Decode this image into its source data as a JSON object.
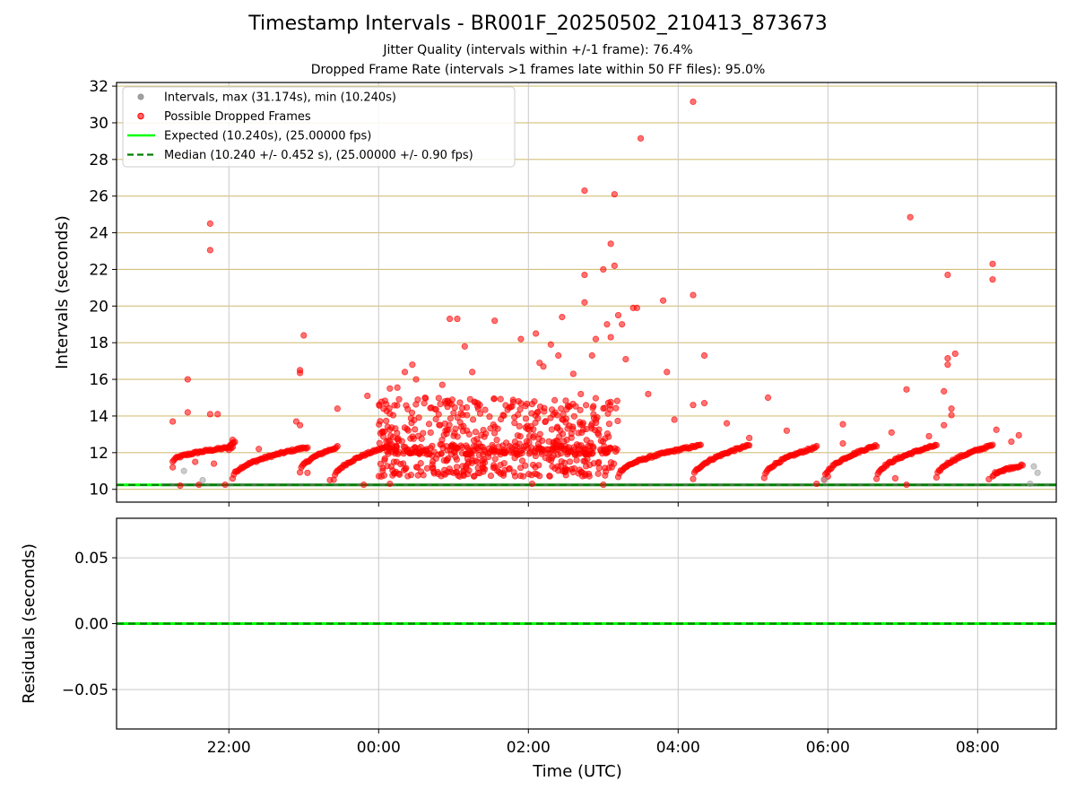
{
  "title": "Timestamp Intervals - BR001F_20250502_210413_873673",
  "subtitle1": "Jitter Quality (intervals within +/-1 frame): 76.4%",
  "subtitle2": "Dropped Frame Rate (intervals >1 frames late within 50 FF files): 95.0%",
  "colors": {
    "intervals": "#a0a0a0",
    "dropped": "#ff0000",
    "expected": "#00ff00",
    "median": "#008000",
    "hgrid": "#d4c07a",
    "vgrid": "#c8c8c8"
  },
  "chart_data": [
    {
      "type": "scatter",
      "xlabel": "",
      "ylabel": "Intervals (seconds)",
      "x_unit": "hours since 00:00 UTC (negative = previous day)",
      "xlim": [
        -3.5,
        9.05
      ],
      "ylim": [
        9.3,
        32.2
      ],
      "yticks": [
        "10",
        "12",
        "14",
        "16",
        "18",
        "20",
        "22",
        "24",
        "26",
        "28",
        "30",
        "32"
      ],
      "ytick_values": [
        10,
        12,
        14,
        16,
        18,
        20,
        22,
        24,
        26,
        28,
        30,
        32
      ],
      "grid": "horizontal",
      "legend_placement": "top-left",
      "legend": [
        {
          "label": "Intervals, max (31.174s), min (10.240s)",
          "kind": "dot-gray"
        },
        {
          "label": "Possible Dropped Frames",
          "kind": "dot-red"
        },
        {
          "label": "Expected (10.240s), (25.00000 fps)",
          "kind": "line-green"
        },
        {
          "label": "Median (10.240 +/- 0.452 s), (25.00000 +/- 0.90 fps)",
          "kind": "dash-darkgreen"
        }
      ],
      "expected_value": 10.24,
      "median_value": 10.24,
      "segments": [
        {
          "x0": -2.75,
          "x1": -1.95,
          "y0": 11.5,
          "y1": 12.3
        },
        {
          "x0": -2.0,
          "x1": -1.92,
          "y0": 12.2,
          "y1": 12.6
        },
        {
          "x0": -1.95,
          "x1": -0.95,
          "y0": 10.6,
          "y1": 12.3
        },
        {
          "x0": -1.05,
          "x1": -0.55,
          "y0": 10.9,
          "y1": 12.3
        },
        {
          "x0": -0.6,
          "x1": 0.1,
          "y0": 10.5,
          "y1": 12.3
        },
        {
          "x0": 3.2,
          "x1": 4.3,
          "y0": 10.7,
          "y1": 12.4
        },
        {
          "x0": 4.2,
          "x1": 4.95,
          "y0": 10.6,
          "y1": 12.4
        },
        {
          "x0": 5.15,
          "x1": 5.85,
          "y0": 10.6,
          "y1": 12.3
        },
        {
          "x0": 5.95,
          "x1": 6.65,
          "y0": 10.5,
          "y1": 12.4
        },
        {
          "x0": 6.65,
          "x1": 7.45,
          "y0": 10.6,
          "y1": 12.4
        },
        {
          "x0": 7.45,
          "x1": 8.2,
          "y0": 10.6,
          "y1": 12.4
        },
        {
          "x0": 8.2,
          "x1": 8.6,
          "y0": 10.7,
          "y1": 11.3
        }
      ],
      "clusters": [
        {
          "x0": 0.0,
          "x1": 3.2,
          "y0": 10.7,
          "y1": 15.0,
          "n": 520
        },
        {
          "x0": 0.1,
          "x1": 3.2,
          "y0": 11.9,
          "y1": 12.4,
          "n": 160
        }
      ],
      "series": [
        {
          "name": "Possible Dropped Frames",
          "points": [
            [
              -2.75,
              13.7
            ],
            [
              -2.75,
              11.2
            ],
            [
              -2.55,
              16.0
            ],
            [
              -2.55,
              14.2
            ],
            [
              -2.45,
              11.5
            ],
            [
              -2.25,
              24.5
            ],
            [
              -2.25,
              23.05
            ],
            [
              -2.25,
              14.1
            ],
            [
              -2.15,
              14.1
            ],
            [
              -2.2,
              11.4
            ],
            [
              -1.95,
              12.7
            ],
            [
              -1.6,
              12.2
            ],
            [
              -1.1,
              13.7
            ],
            [
              -1.05,
              16.5
            ],
            [
              -1.05,
              16.35
            ],
            [
              -1.0,
              18.4
            ],
            [
              -1.05,
              13.5
            ],
            [
              -0.95,
              10.9
            ],
            [
              -0.55,
              14.4
            ],
            [
              -0.65,
              10.5
            ],
            [
              -0.15,
              15.1
            ],
            [
              0.15,
              15.5
            ],
            [
              0.25,
              15.55
            ],
            [
              0.35,
              16.4
            ],
            [
              0.45,
              16.8
            ],
            [
              0.5,
              16.0
            ],
            [
              0.85,
              15.7
            ],
            [
              0.95,
              19.3
            ],
            [
              1.05,
              19.3
            ],
            [
              1.15,
              17.8
            ],
            [
              1.25,
              16.4
            ],
            [
              1.55,
              19.2
            ],
            [
              1.9,
              18.2
            ],
            [
              2.1,
              18.5
            ],
            [
              2.15,
              16.9
            ],
            [
              2.2,
              16.7
            ],
            [
              2.3,
              17.9
            ],
            [
              2.4,
              17.3
            ],
            [
              2.45,
              19.4
            ],
            [
              2.6,
              16.3
            ],
            [
              2.7,
              15.2
            ],
            [
              2.75,
              26.3
            ],
            [
              2.75,
              21.7
            ],
            [
              2.75,
              20.2
            ],
            [
              2.85,
              17.3
            ],
            [
              2.9,
              18.2
            ],
            [
              3.0,
              22.0
            ],
            [
              3.05,
              19.0
            ],
            [
              3.1,
              23.4
            ],
            [
              3.1,
              18.3
            ],
            [
              3.15,
              22.2
            ],
            [
              3.15,
              26.1
            ],
            [
              3.2,
              19.5
            ],
            [
              3.25,
              19.0
            ],
            [
              3.3,
              17.1
            ],
            [
              3.4,
              19.9
            ],
            [
              3.45,
              19.9
            ],
            [
              3.5,
              29.15
            ],
            [
              3.6,
              15.2
            ],
            [
              3.8,
              20.3
            ],
            [
              3.85,
              16.4
            ],
            [
              3.95,
              13.8
            ],
            [
              4.2,
              31.15
            ],
            [
              4.2,
              20.6
            ],
            [
              4.35,
              17.3
            ],
            [
              4.35,
              14.7
            ],
            [
              4.65,
              13.6
            ],
            [
              4.95,
              12.8
            ],
            [
              5.2,
              15.0
            ],
            [
              5.45,
              13.2
            ],
            [
              6.2,
              13.55
            ],
            [
              6.2,
              12.5
            ],
            [
              6.35,
              11.9
            ],
            [
              6.85,
              13.1
            ],
            [
              6.9,
              10.6
            ],
            [
              7.05,
              15.45
            ],
            [
              7.1,
              24.85
            ],
            [
              7.35,
              12.9
            ],
            [
              7.55,
              13.5
            ],
            [
              7.55,
              15.35
            ],
            [
              7.6,
              17.15
            ],
            [
              7.6,
              16.8
            ],
            [
              7.6,
              21.7
            ],
            [
              7.65,
              14.05
            ],
            [
              7.65,
              14.4
            ],
            [
              7.7,
              17.4
            ],
            [
              8.2,
              22.3
            ],
            [
              8.2,
              21.45
            ],
            [
              8.25,
              13.25
            ],
            [
              8.35,
              11.0
            ],
            [
              8.55,
              12.95
            ],
            [
              8.45,
              12.6
            ],
            [
              8.15,
              10.55
            ],
            [
              7.05,
              10.25
            ],
            [
              6.0,
              10.7
            ],
            [
              4.2,
              14.6
            ],
            [
              2.05,
              10.3
            ],
            [
              0.15,
              10.3
            ],
            [
              -0.2,
              10.25
            ],
            [
              -2.4,
              10.25
            ],
            [
              -2.65,
              10.2
            ],
            [
              -2.05,
              10.25
            ],
            [
              5.85,
              10.3
            ],
            [
              3.0,
              10.25
            ]
          ]
        },
        {
          "name": "Intervals",
          "points": [
            [
              -2.6,
              11.0
            ],
            [
              -2.35,
              10.5
            ],
            [
              5.95,
              10.5
            ],
            [
              8.75,
              11.25
            ],
            [
              8.8,
              10.9
            ],
            [
              8.7,
              10.3
            ]
          ]
        }
      ]
    },
    {
      "type": "line",
      "xlabel": "Time (UTC)",
      "ylabel": "Residuals (seconds)",
      "xlim": [
        -3.5,
        9.05
      ],
      "ylim": [
        -0.08,
        0.08
      ],
      "xticks": [
        "22:00",
        "00:00",
        "02:00",
        "04:00",
        "06:00",
        "08:00"
      ],
      "xtick_values": [
        -2,
        0,
        2,
        4,
        6,
        8
      ],
      "yticks": [
        "0.05",
        "0.00",
        "−0.05"
      ],
      "ytick_values": [
        0.05,
        0.0,
        -0.05
      ],
      "grid": "both",
      "residual_value": 0.0
    }
  ]
}
